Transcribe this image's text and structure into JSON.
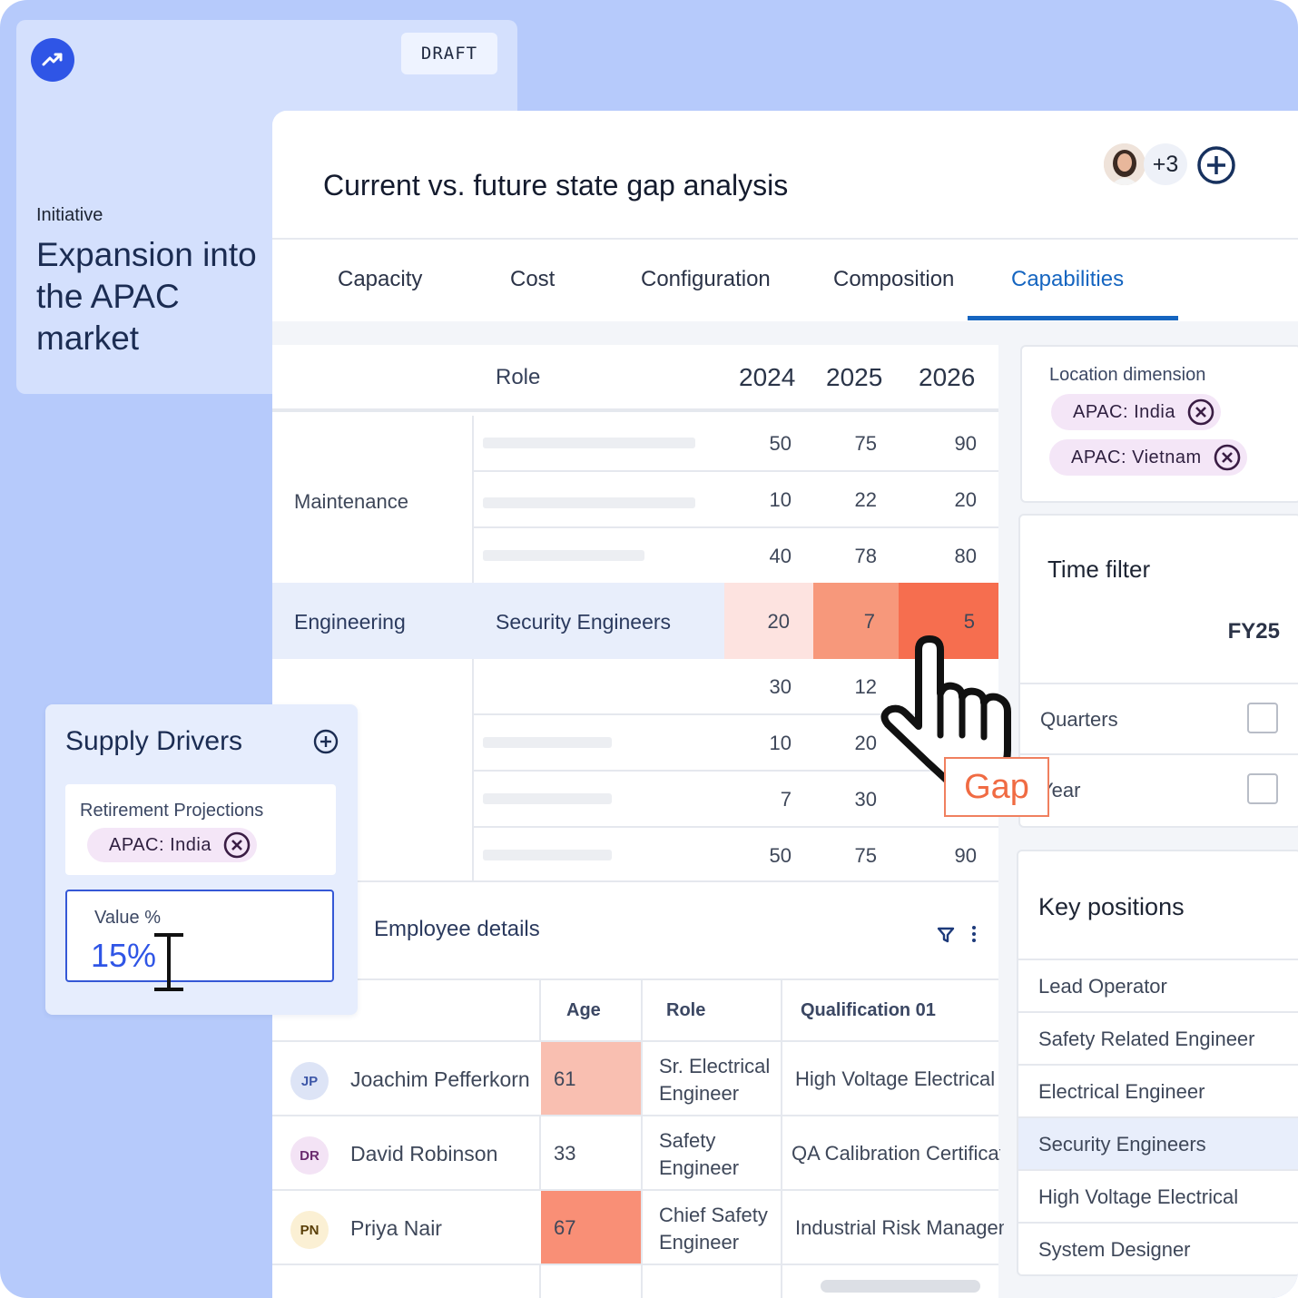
{
  "initiative": {
    "draft_label": "DRAFT",
    "label": "Initiative",
    "title": "Expansion into the APAC market",
    "logo_icon": "trending-up-icon",
    "accent": "#2f55e6"
  },
  "header": {
    "title": "Current vs. future state gap analysis",
    "extra_users": "+3",
    "add_icon": "plus-circle-icon"
  },
  "tabs": [
    {
      "label": "Capacity"
    },
    {
      "label": "Cost"
    },
    {
      "label": "Configuration"
    },
    {
      "label": "Composition"
    },
    {
      "label": "Capabilities",
      "active": true
    }
  ],
  "gap_table": {
    "headers": {
      "role": "Role",
      "y1": "2024",
      "y2": "2025",
      "y3": "2026"
    },
    "maintenance": {
      "label": "Maintenance",
      "rows": [
        {
          "v1": "50",
          "v2": "75",
          "v3": "90"
        },
        {
          "v1": "10",
          "v2": "22",
          "v3": "20"
        },
        {
          "v1": "40",
          "v2": "78",
          "v3": "80"
        }
      ]
    },
    "engineering": {
      "label": "Engineering",
      "role": "Security Engineers",
      "v1": "20",
      "v2": "7",
      "v3": "5",
      "colors": [
        "#fde3e0",
        "#f7987b",
        "#f66e4f"
      ]
    },
    "lower_rows": [
      {
        "v1": "30",
        "v2": "12"
      },
      {
        "v1": "10",
        "v2": "20"
      },
      {
        "v1": "7",
        "v2": "30"
      },
      {
        "v1": "50",
        "v2": "75",
        "v3": "90"
      }
    ]
  },
  "gap_label": "Gap",
  "employee_details": {
    "title": "Employee details",
    "headers": {
      "age": "Age",
      "role": "Role",
      "qual": "Qualification 01"
    },
    "rows": [
      {
        "initials": "JP",
        "name": "Joachim Pefferkorn",
        "age": "61",
        "role": "Sr. Electrical Engineer",
        "qualification": "High Voltage Electrical",
        "age_color": "#f9bfb1"
      },
      {
        "initials": "DR",
        "name": "David Robinson",
        "age": "33",
        "role": "Safety Engineer",
        "qualification": "QA Calibration Certification",
        "age_color": "#ffffff"
      },
      {
        "initials": "PN",
        "name": "Priya Nair",
        "age": "67",
        "role": "Chief Safety Engineer",
        "qualification": "Industrial Risk Management",
        "age_color": "#f98f76"
      }
    ]
  },
  "location": {
    "title": "Location dimension",
    "chips": [
      "APAC: India",
      "APAC: Vietnam"
    ]
  },
  "time_filter": {
    "title": "Time filter",
    "value": "FY25",
    "options": [
      {
        "label": "Quarters",
        "checked": false
      },
      {
        "label": "Year",
        "checked": false
      }
    ]
  },
  "key_positions": {
    "title": "Key positions",
    "items": [
      "Lead Operator",
      "Safety Related Engineer",
      "Electrical Engineer",
      "Security Engineers",
      "High Voltage Electrical",
      "System Designer"
    ],
    "selected": "Security Engineers"
  },
  "supply_drivers": {
    "title": "Supply Drivers",
    "card_title": "Retirement Projections",
    "chip": "APAC: India",
    "value_label": "Value %",
    "value": "15%"
  }
}
